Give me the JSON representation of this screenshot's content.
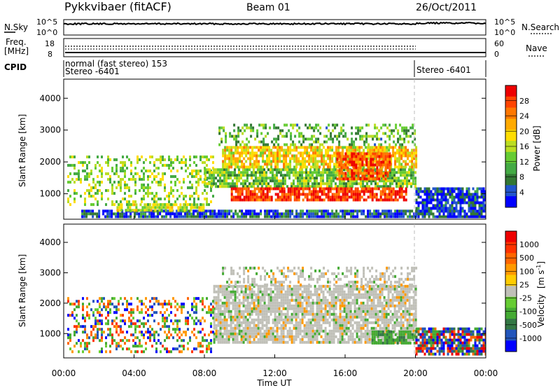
{
  "header": {
    "title": "Pykkvibaer (fitACF)",
    "beam": "Beam 01",
    "date": "26/Oct/2011"
  },
  "strip_panels": {
    "nsky_label": "N.Sky",
    "nsky_ticks": [
      "10^5",
      "10^0"
    ],
    "nsearch_label": "N.Search",
    "nsearch_ticks": [
      "10^5",
      "10^0"
    ],
    "freq_label_line1": "Freq.",
    "freq_label_line2": "[MHz]",
    "freq_ticks": [
      "18",
      "8"
    ],
    "nave_label": "Nave",
    "nave_ticks": [
      "60",
      "0"
    ],
    "cpid_label": "CPID",
    "cpid_text_1": "normal (fast stereo) 153",
    "cpid_text_2": "Stereo -6401",
    "cpid_text_3": "Stereo -6401"
  },
  "chart_data": [
    {
      "type": "heatmap",
      "panel": "power",
      "ylabel": "Slant Range [km]",
      "y_ticks": [
        "4000",
        "3000",
        "2000",
        "1000"
      ],
      "ylim": [
        200,
        4600
      ],
      "xlim_hours": [
        0,
        24
      ],
      "colorbar": {
        "label": "Power [dB]",
        "ticks": [
          "28",
          "24",
          "20",
          "16",
          "12",
          "8",
          "4"
        ],
        "range": [
          0,
          32
        ],
        "colors": [
          "#0000ff",
          "#2255cc",
          "#337733",
          "#44aa44",
          "#66cc33",
          "#bbdd22",
          "#ffdd00",
          "#ffaa00",
          "#ff7700",
          "#ff4400",
          "#ee0000"
        ]
      },
      "regions": [
        {
          "x": [
            1.0,
            20.0
          ],
          "y": [
            300,
            500
          ],
          "level": 0.15
        },
        {
          "x": [
            3.0,
            8.0
          ],
          "y": [
            450,
            700
          ],
          "level": 0.5
        },
        {
          "x": [
            0.2,
            8.5
          ],
          "y": [
            700,
            2200
          ],
          "level": 0.45,
          "sparse": true
        },
        {
          "x": [
            8.0,
            20.0
          ],
          "y": [
            1200,
            1800
          ],
          "level": 0.4
        },
        {
          "x": [
            9.0,
            20.0
          ],
          "y": [
            1800,
            2500
          ],
          "level": 0.6
        },
        {
          "x": [
            8.8,
            20.0
          ],
          "y": [
            2500,
            3200
          ],
          "level": 0.35,
          "sparse": true
        },
        {
          "x": [
            9.5,
            19.5
          ],
          "y": [
            800,
            1200
          ],
          "level": 0.9
        },
        {
          "x": [
            15.5,
            18.5
          ],
          "y": [
            1500,
            2300
          ],
          "level": 0.85
        },
        {
          "x": [
            20.0,
            24.0
          ],
          "y": [
            300,
            1200
          ],
          "level": 0.12
        }
      ]
    },
    {
      "type": "heatmap",
      "panel": "velocity",
      "ylabel": "Slant Range [km]",
      "y_ticks": [
        "4000",
        "3000",
        "2000",
        "1000"
      ],
      "ylim": [
        200,
        4600
      ],
      "xlim_hours": [
        0,
        24
      ],
      "x_ticks": [
        "00:00",
        "04:00",
        "08:00",
        "12:00",
        "16:00",
        "20:00",
        "00:00"
      ],
      "xlabel": "Time UT",
      "colorbar": {
        "label": "Velocity",
        "unit": "m s",
        "unit_exp": "-1",
        "ticks": [
          "1000",
          "500",
          "100",
          "25",
          "-25",
          "-100",
          "-500",
          "-1000"
        ],
        "colors": [
          "#0000ff",
          "#2255bb",
          "#337744",
          "#44aa33",
          "#66cc33",
          "#c0c0b8",
          "#ffcc00",
          "#ff9900",
          "#ff6600",
          "#ff3300",
          "#ee0000"
        ]
      },
      "regions": [
        {
          "x": [
            8.5,
            20.0
          ],
          "y": [
            700,
            2600
          ],
          "level": "ground"
        },
        {
          "x": [
            9.0,
            20.0
          ],
          "y": [
            2600,
            3200
          ],
          "level": "ground",
          "sparse": true
        },
        {
          "x": [
            0.2,
            8.5
          ],
          "y": [
            400,
            2200
          ],
          "level": "mixed",
          "sparse": true
        },
        {
          "x": [
            17.5,
            20.0
          ],
          "y": [
            700,
            1100
          ],
          "level": "positive"
        },
        {
          "x": [
            20.0,
            24.0
          ],
          "y": [
            300,
            1200
          ],
          "level": "mixed_dark"
        }
      ]
    }
  ]
}
